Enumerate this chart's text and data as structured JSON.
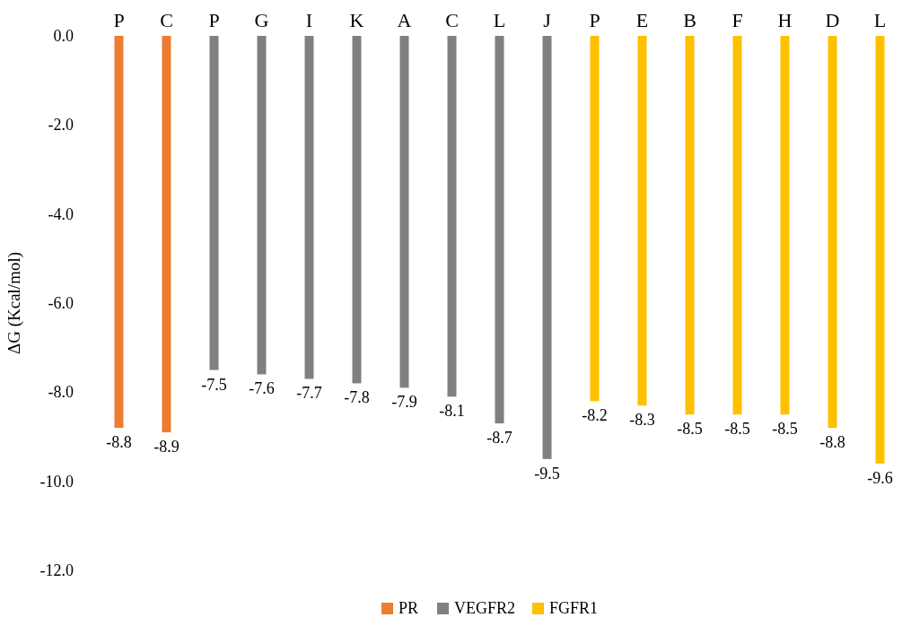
{
  "chart_data": {
    "type": "bar",
    "ylabel": "ΔG (Kcal/mol)",
    "categories": [
      "P",
      "C",
      "P",
      "G",
      "I",
      "K",
      "A",
      "C",
      "L",
      "J",
      "P",
      "E",
      "B",
      "F",
      "H",
      "D",
      "L"
    ],
    "series": [
      {
        "name": "PR",
        "color": "#ed7d31",
        "values": [
          -8.8,
          -8.9,
          null,
          null,
          null,
          null,
          null,
          null,
          null,
          null,
          null,
          null,
          null,
          null,
          null,
          null,
          null
        ]
      },
      {
        "name": "VEGFR2",
        "color": "#808080",
        "values": [
          null,
          null,
          -7.5,
          -7.6,
          -7.7,
          -7.8,
          -7.9,
          -8.1,
          -8.7,
          -9.5,
          null,
          null,
          null,
          null,
          null,
          null,
          null
        ]
      },
      {
        "name": "FGFR1",
        "color": "#ffc000",
        "values": [
          null,
          null,
          null,
          null,
          null,
          null,
          null,
          null,
          null,
          null,
          -8.2,
          -8.3,
          -8.5,
          -8.5,
          -8.5,
          -8.8,
          -9.6
        ]
      }
    ],
    "ylim": [
      -12,
      0
    ],
    "yticks": [
      {
        "value": 0,
        "label": "0.0"
      },
      {
        "value": -2,
        "label": "-2.0"
      },
      {
        "value": -4,
        "label": "-4.0"
      },
      {
        "value": -6,
        "label": "-6.0"
      },
      {
        "value": -8,
        "label": "-8.0"
      },
      {
        "value": -10,
        "label": "-10.0"
      },
      {
        "value": -12,
        "label": "-12.0"
      }
    ],
    "data_labels": true,
    "legend": "bottom",
    "grid": false
  }
}
